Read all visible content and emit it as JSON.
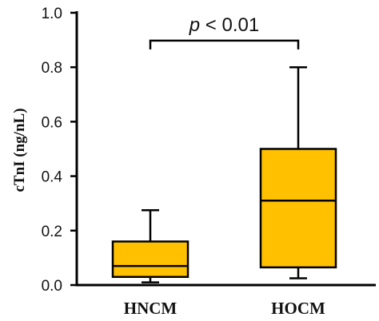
{
  "chart_data": {
    "type": "box",
    "ylabel": "cTnI (ng/nL)",
    "ylim": [
      0,
      1.0
    ],
    "yticks": [
      "0.0",
      "0.2",
      "0.4",
      "0.6",
      "0.8",
      "1.0"
    ],
    "categories": [
      "HNCM",
      "HOCM"
    ],
    "boxes": [
      {
        "category": "HNCM",
        "min": 0.01,
        "q1": 0.03,
        "median": 0.07,
        "q3": 0.16,
        "max": 0.275
      },
      {
        "category": "HOCM",
        "min": 0.025,
        "q1": 0.065,
        "median": 0.31,
        "q3": 0.5,
        "max": 0.8
      }
    ],
    "annotation": {
      "italic": "p",
      "rest": " < 0.01",
      "bracket_y": 0.88
    },
    "colors": {
      "box_fill": "#FFC000",
      "stroke": "#000000"
    }
  }
}
